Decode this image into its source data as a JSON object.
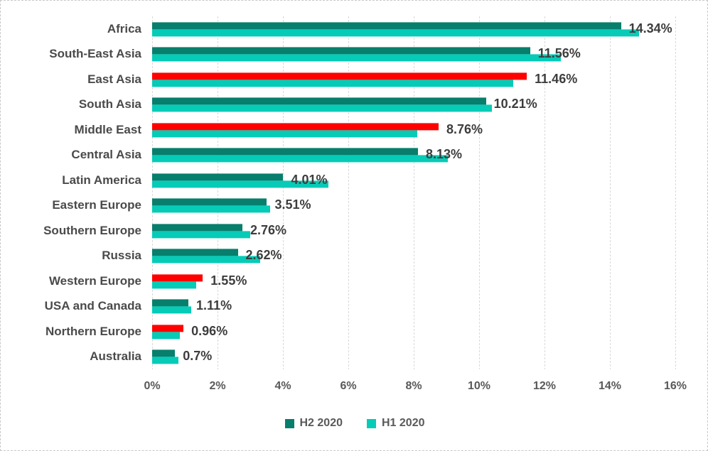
{
  "chart_data": {
    "type": "bar",
    "orientation": "horizontal",
    "title": "",
    "xlabel": "",
    "ylabel": "",
    "categories": [
      "Africa",
      "South-East Asia",
      "East Asia",
      "South Asia",
      "Middle East",
      "Central Asia",
      "Latin America",
      "Eastern Europe",
      "Southern Europe",
      "Russia",
      "Western Europe",
      "USA and Canada",
      "Northern Europe",
      "Australia"
    ],
    "series": [
      {
        "name": "H2 2020",
        "color": "#087e6c",
        "values": [
          14.34,
          11.56,
          11.46,
          10.21,
          8.76,
          8.13,
          4.01,
          3.51,
          2.76,
          2.62,
          1.55,
          1.11,
          0.96,
          0.7
        ]
      },
      {
        "name": "H1 2020",
        "color": "#06cbb7",
        "values": [
          14.9,
          12.5,
          11.05,
          10.4,
          8.1,
          9.05,
          5.4,
          3.6,
          3.0,
          3.3,
          1.35,
          1.2,
          0.85,
          0.8
        ]
      }
    ],
    "h2_highlight_color": "#ff0000",
    "h2_highlighted_indices": [
      2,
      4,
      10,
      12
    ],
    "data_labels": [
      "14.34%",
      "11.56%",
      "11.46%",
      "10.21%",
      "8.76%",
      "8.13%",
      "4.01%",
      "3.51%",
      "2.76%",
      "2.62%",
      "1.55%",
      "1.11%",
      "0.96%",
      "0.7%"
    ],
    "xlim": [
      0,
      16
    ],
    "x_ticks": [
      "0%",
      "2%",
      "4%",
      "6%",
      "8%",
      "10%",
      "12%",
      "14%",
      "16%"
    ],
    "grid": "vertical-dashed",
    "gridline_color": "#d9d9d9",
    "legend_position": "bottom"
  },
  "legend": {
    "items": [
      {
        "label": "H2 2020",
        "color": "#087e6c"
      },
      {
        "label": "H1 2020",
        "color": "#06cbb7"
      }
    ]
  }
}
